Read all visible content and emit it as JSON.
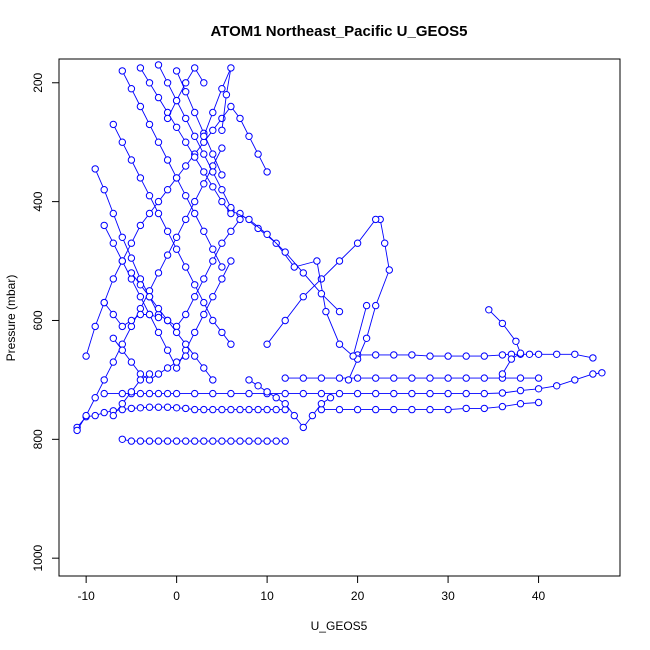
{
  "chart_data": {
    "type": "line",
    "title": "ATOM1 Northeast_Pacific U_GEOS5",
    "xlabel": "U_GEOS5",
    "ylabel": "Pressure (mbar)",
    "xlim": [
      -13,
      49
    ],
    "ylim": [
      1030,
      160
    ],
    "y_reversed": true,
    "x_ticks": [
      -10,
      0,
      10,
      20,
      30,
      40
    ],
    "x_tick_labels": [
      "-10",
      "0",
      "10",
      "20",
      "30",
      "40"
    ],
    "y_ticks": [
      200,
      400,
      600,
      800,
      1000
    ],
    "y_tick_labels": [
      "200",
      "400",
      "600",
      "800",
      "1000"
    ],
    "grid": false,
    "marker": "open-circle",
    "colors": {
      "series": "#0000ff",
      "axes": "#000000"
    },
    "series": [
      {
        "x": [
          -11,
          -10,
          -9,
          -8,
          -7,
          -6,
          -5,
          -4,
          -3,
          -2,
          -1,
          0,
          1,
          2,
          3,
          4,
          5,
          6,
          7,
          8,
          9,
          10,
          11,
          12
        ],
        "y": [
          780,
          762,
          760,
          755,
          752,
          750,
          748,
          747,
          746,
          746,
          746,
          747,
          748,
          750,
          750,
          750,
          750,
          750,
          750,
          750,
          750,
          750,
          750,
          750
        ]
      },
      {
        "x": [
          -6,
          -5,
          -4,
          -3,
          -2,
          -1,
          0,
          1,
          2,
          3,
          4,
          5,
          6,
          7,
          8,
          9,
          10,
          11,
          12
        ],
        "y": [
          800,
          803,
          803,
          803,
          803,
          803,
          803,
          803,
          803,
          803,
          803,
          803,
          803,
          803,
          803,
          803,
          803,
          803,
          803
        ]
      },
      {
        "x": [
          -8,
          -6,
          -5,
          -4,
          -3,
          -2,
          -1,
          0,
          2,
          4,
          6,
          8,
          10,
          12,
          14,
          16,
          18,
          20,
          22,
          24,
          26,
          28,
          30,
          32,
          34,
          36,
          38,
          40,
          42,
          44,
          46,
          47
        ],
        "y": [
          723,
          723,
          723,
          723,
          723,
          723,
          723,
          723,
          723,
          723,
          723,
          723,
          723,
          723,
          723,
          723,
          723,
          723,
          723,
          723,
          723,
          723,
          723,
          723,
          723,
          722,
          718,
          715,
          710,
          700,
          690,
          688
        ]
      },
      {
        "x": [
          12,
          14,
          16,
          18,
          20,
          22,
          24,
          26,
          28,
          30,
          32,
          34,
          36,
          38,
          40
        ],
        "y": [
          697,
          697,
          697,
          697,
          697,
          697,
          697,
          697,
          697,
          697,
          697,
          697,
          697,
          697,
          697
        ]
      },
      {
        "x": [
          20,
          22,
          24,
          26,
          28,
          30,
          32,
          34,
          36,
          37,
          38,
          39,
          40,
          42,
          44,
          46
        ],
        "y": [
          658,
          658,
          658,
          658,
          660,
          660,
          660,
          660,
          658,
          657,
          657,
          657,
          657,
          657,
          657,
          663
        ]
      },
      {
        "x": [
          16,
          18,
          20,
          22,
          24,
          26,
          28,
          30,
          32,
          34,
          36,
          38,
          40
        ],
        "y": [
          750,
          750,
          750,
          750,
          750,
          750,
          750,
          750,
          748,
          748,
          745,
          740,
          738
        ]
      },
      {
        "x": [
          22.5,
          23,
          23.5,
          22,
          21,
          20,
          19
        ],
        "y": [
          430,
          470,
          515,
          575,
          630,
          665,
          700
        ]
      },
      {
        "x": [
          34.5,
          36,
          37.5,
          38,
          37,
          36
        ],
        "y": [
          582,
          605,
          635,
          655,
          665,
          690
        ]
      },
      {
        "x": [
          22,
          20,
          18,
          16,
          14,
          12,
          10
        ],
        "y": [
          430,
          470,
          500,
          530,
          560,
          600,
          640
        ]
      },
      {
        "x": [
          7,
          9,
          11,
          13,
          15.5,
          16.5,
          18,
          19.5,
          21
        ],
        "y": [
          420,
          445,
          470,
          510,
          500,
          585,
          640,
          660,
          575
        ]
      },
      {
        "x": [
          6,
          8,
          10,
          12,
          14,
          16,
          18
        ],
        "y": [
          415,
          430,
          455,
          485,
          520,
          555,
          585
        ]
      },
      {
        "x": [
          -10,
          -9,
          -8,
          -7,
          -6,
          -5,
          -4,
          -3,
          -2,
          -1,
          0,
          1,
          2,
          3,
          4,
          5,
          6,
          7,
          8,
          9,
          10
        ],
        "y": [
          660,
          610,
          570,
          530,
          500,
          470,
          440,
          420,
          400,
          380,
          360,
          340,
          320,
          300,
          280,
          260,
          240,
          260,
          290,
          320,
          350
        ]
      },
      {
        "x": [
          -9,
          -8,
          -7,
          -6,
          -5,
          -4,
          -3,
          -2,
          -1,
          0,
          1,
          2,
          3,
          4,
          5,
          6,
          7
        ],
        "y": [
          345,
          380,
          420,
          460,
          495,
          530,
          560,
          590,
          600,
          610,
          590,
          560,
          530,
          500,
          470,
          450,
          430
        ]
      },
      {
        "x": [
          -11,
          -10,
          -9,
          -8,
          -7,
          -6,
          -5,
          -4,
          -3,
          -2,
          -1,
          0,
          1,
          2,
          3,
          4,
          5
        ],
        "y": [
          785,
          760,
          730,
          700,
          670,
          640,
          610,
          580,
          550,
          520,
          490,
          460,
          430,
          400,
          370,
          340,
          310
        ]
      },
      {
        "x": [
          -7,
          -6,
          -5,
          -4,
          -3,
          -2,
          -1,
          0,
          1,
          2,
          3,
          4,
          5,
          6
        ],
        "y": [
          270,
          300,
          330,
          360,
          390,
          420,
          450,
          480,
          510,
          540,
          570,
          600,
          620,
          640
        ]
      },
      {
        "x": [
          -8,
          -7,
          -6,
          -5,
          -4,
          -3,
          -2,
          -1,
          0,
          1,
          2,
          3,
          4,
          5,
          6
        ],
        "y": [
          440,
          470,
          500,
          530,
          560,
          590,
          620,
          650,
          680,
          650,
          620,
          590,
          560,
          530,
          500
        ]
      },
      {
        "x": [
          -6,
          -5,
          -4,
          -3,
          -2,
          -1,
          0,
          1,
          2,
          3,
          4,
          5
        ],
        "y": [
          180,
          210,
          240,
          270,
          300,
          330,
          360,
          390,
          420,
          450,
          480,
          510
        ]
      },
      {
        "x": [
          -4,
          -3,
          -2,
          -1,
          0,
          1,
          2,
          3,
          4,
          5,
          6
        ],
        "y": [
          175,
          200,
          225,
          250,
          275,
          300,
          325,
          350,
          375,
          400,
          420
        ]
      },
      {
        "x": [
          -2,
          -1,
          0,
          1,
          2,
          3,
          4,
          5,
          6
        ],
        "y": [
          170,
          200,
          230,
          260,
          290,
          320,
          350,
          380,
          410
        ]
      },
      {
        "x": [
          0,
          1,
          2,
          3,
          4,
          5
        ],
        "y": [
          180,
          215,
          250,
          285,
          320,
          355
        ]
      },
      {
        "x": [
          -5,
          -4,
          -3,
          -2,
          -1,
          0,
          1,
          2,
          3,
          4
        ],
        "y": [
          520,
          540,
          560,
          580,
          600,
          620,
          640,
          660,
          680,
          700
        ]
      },
      {
        "x": [
          -7,
          -6,
          -5,
          -4,
          -3,
          -2,
          -1,
          0,
          1
        ],
        "y": [
          630,
          650,
          670,
          690,
          700,
          690,
          680,
          670,
          660
        ]
      },
      {
        "x": [
          -8,
          -7,
          -6,
          -5,
          -4,
          -3,
          -2
        ],
        "y": [
          570,
          590,
          610,
          600,
          590,
          590,
          595
        ]
      },
      {
        "x": [
          3,
          4,
          5,
          6,
          5.5,
          5
        ],
        "y": [
          290,
          250,
          210,
          175,
          220,
          280
        ]
      },
      {
        "x": [
          -1,
          0,
          1,
          2,
          3
        ],
        "y": [
          260,
          230,
          200,
          175,
          200
        ]
      },
      {
        "x": [
          -7,
          -6,
          -5,
          -4,
          -3
        ],
        "y": [
          760,
          740,
          720,
          700,
          690
        ]
      },
      {
        "x": [
          8,
          9,
          10,
          11,
          12,
          13,
          14,
          15,
          16,
          17
        ],
        "y": [
          700,
          710,
          720,
          730,
          740,
          760,
          780,
          760,
          740,
          730
        ]
      }
    ]
  }
}
